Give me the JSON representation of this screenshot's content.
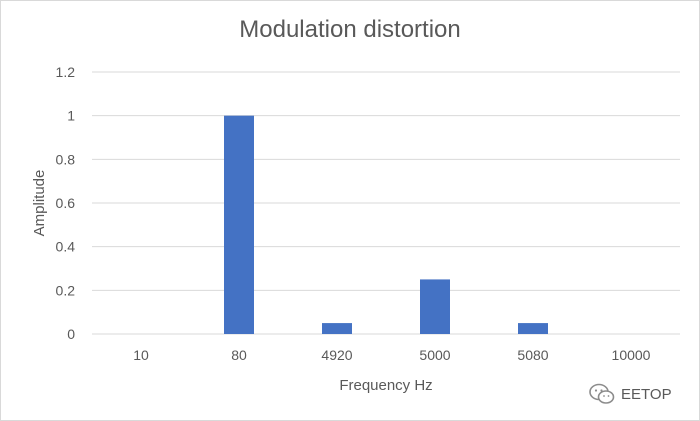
{
  "chart_data": {
    "type": "bar",
    "title": "Modulation distortion",
    "xlabel": "Frequency Hz",
    "ylabel": "Amplitude",
    "categories": [
      "10",
      "80",
      "4920",
      "5000",
      "5080",
      "10000"
    ],
    "values": [
      0,
      1,
      0.05,
      0.25,
      0.05,
      0
    ],
    "ylim": [
      0,
      1.2
    ],
    "yticks": [
      "0",
      "0.2",
      "0.4",
      "0.6",
      "0.8",
      "1",
      "1.2"
    ],
    "grid": true,
    "bar_color": "#4472c4",
    "grid_color": "#d9d9d9"
  },
  "watermark": {
    "text": "EETOP",
    "icon": "wechat-icon"
  }
}
